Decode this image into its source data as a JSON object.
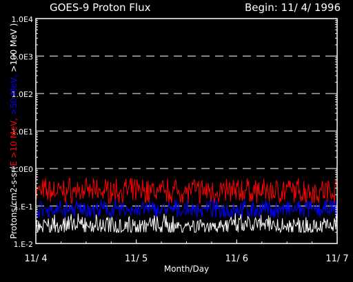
{
  "header": {
    "title": "GOES-9 Proton Flux",
    "begin": "Begin: 11/ 4/ 1996"
  },
  "colors": {
    "background": "#000000",
    "axis": "#ffffff",
    "gt10": "#ff0000",
    "gt50": "#0000ff",
    "gt100": "#ffffff"
  },
  "chart_data": {
    "type": "line",
    "title": "GOES-9 Proton Flux",
    "xlabel": "Month/Day",
    "ylabel_parts": [
      {
        "text": "Protons/cm2-s-sr(",
        "color": "#ffffff"
      },
      {
        "text": "E >10 MeV, ",
        "color": "#ff0000"
      },
      {
        "text": ">50 MeV, ",
        "color": "#0000ff"
      },
      {
        "text": ">100 MeV )",
        "color": "#ffffff"
      }
    ],
    "y_scale": "log",
    "ylim": [
      0.01,
      10000
    ],
    "yticks": [
      {
        "value": 10000,
        "label": "1.0E4"
      },
      {
        "value": 1000,
        "label": "1.0E3"
      },
      {
        "value": 100,
        "label": "1.0E2"
      },
      {
        "value": 10,
        "label": "1.0E1"
      },
      {
        "value": 1,
        "label": "1.0E0"
      },
      {
        "value": 0.1,
        "label": "1.E-1"
      },
      {
        "value": 0.01,
        "label": "1.E-2"
      }
    ],
    "xlim": [
      0,
      3
    ],
    "xticks": [
      {
        "value": 0,
        "label": "11/ 4"
      },
      {
        "value": 1,
        "label": "11/ 5"
      },
      {
        "value": 2,
        "label": "11/ 6"
      },
      {
        "value": 3,
        "label": "11/ 7"
      }
    ],
    "grid": "dashed horizontal",
    "series": [
      {
        "color": "#ff0000",
        "typical": 0.25,
        "range": [
          0.12,
          0.55
        ]
      },
      {
        "color": "#0000ff",
        "typical": 0.08,
        "range": [
          0.05,
          0.15
        ]
      },
      {
        "color": "#ffffff",
        "typical": 0.03,
        "range": [
          0.02,
          0.07
        ]
      }
    ]
  }
}
